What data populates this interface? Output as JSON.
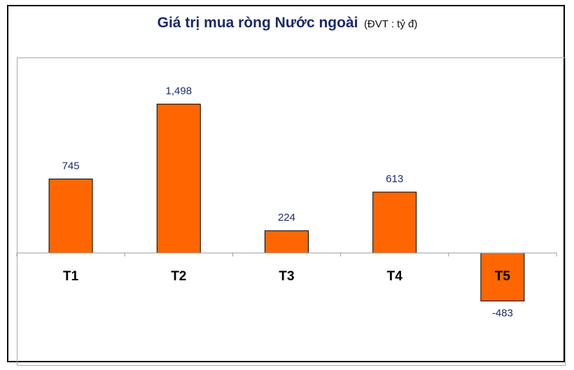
{
  "header": {
    "title": "Giá trị mua ròng Nước ngoài",
    "unit": "(ĐVT : tỷ đ)"
  },
  "colors": {
    "bar": "#ff6600",
    "bar_stroke": "#000000",
    "title": "#1b2a6b"
  },
  "chart_data": {
    "type": "bar",
    "title": "Giá trị mua ròng Nước ngoài",
    "subtitle": "(ĐVT : tỷ đ)",
    "categories": [
      "T1",
      "T2",
      "T3",
      "T4",
      "T5"
    ],
    "values": [
      745,
      1498,
      224,
      613,
      -483
    ],
    "data_labels": [
      "745",
      "1,498",
      "224",
      "613",
      "-483"
    ],
    "xlabel": "",
    "ylabel": "",
    "grid": false,
    "legend": "none"
  }
}
